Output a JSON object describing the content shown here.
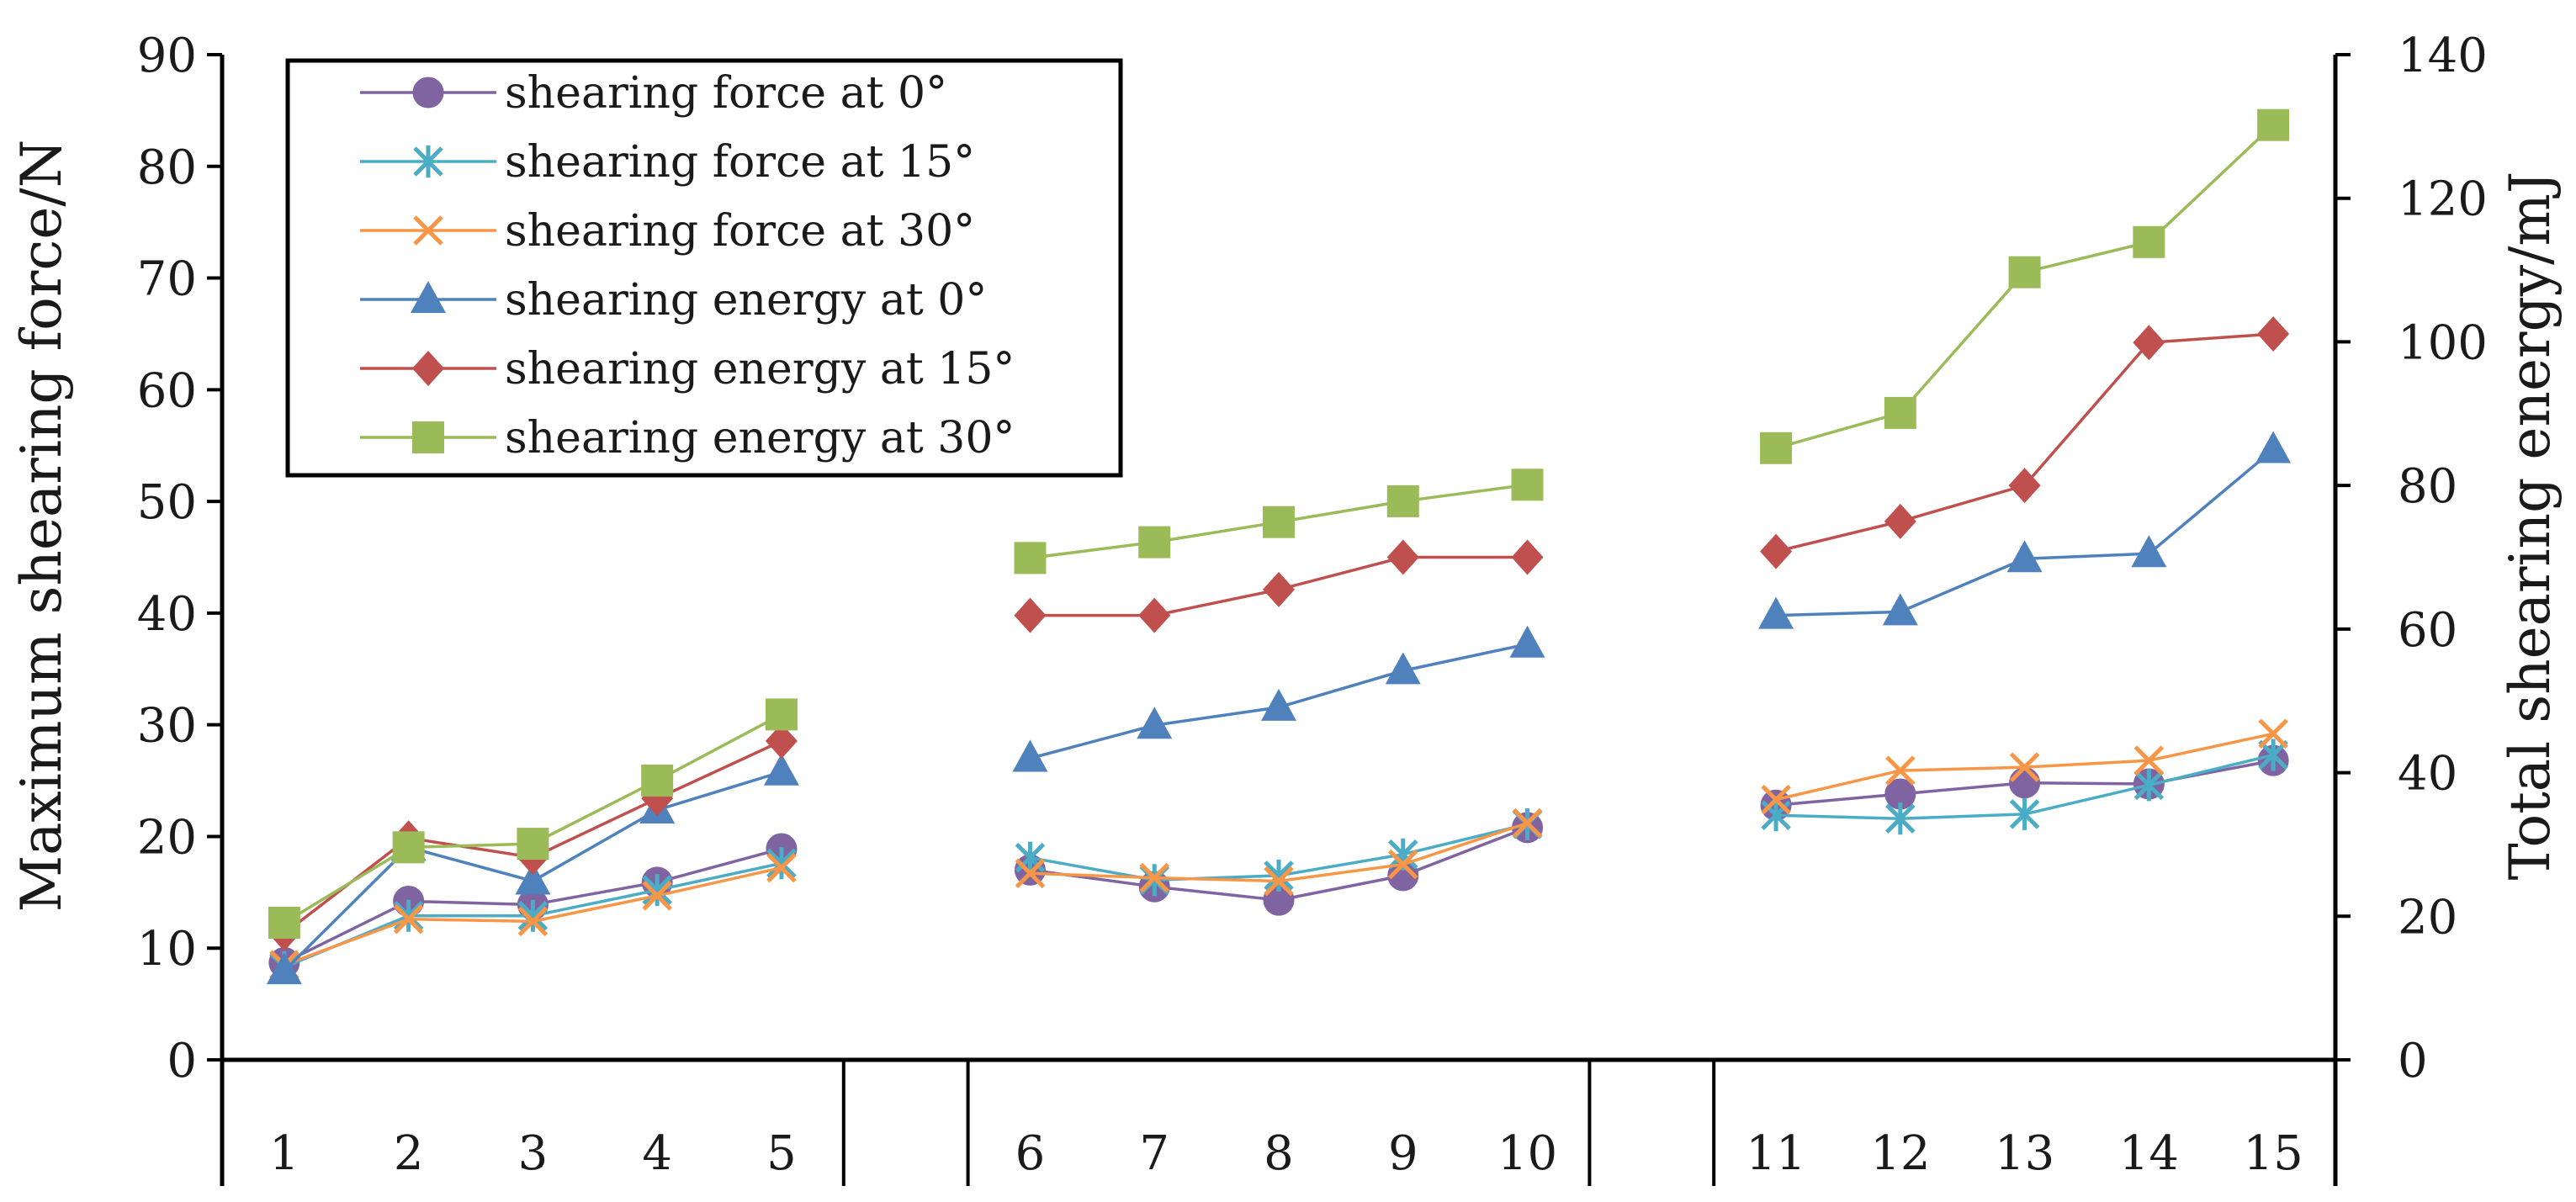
{
  "chart_data": {
    "type": "line",
    "title": "",
    "xlabel": "",
    "ylabel": "Maximum shearing force/N",
    "y2label": "Total shearing energy/mJ",
    "ylim": [
      0,
      90
    ],
    "y2lim": [
      0,
      140
    ],
    "yticks": [
      "0",
      "10",
      "20",
      "30",
      "40",
      "50",
      "60",
      "70",
      "80",
      "90"
    ],
    "y2ticks": [
      "0",
      "20",
      "40",
      "60",
      "80",
      "100",
      "120",
      "140"
    ],
    "categories": [
      "1",
      "2",
      "3",
      "4",
      "5",
      "",
      "6",
      "7",
      "8",
      "9",
      "10",
      "",
      "11",
      "12",
      "13",
      "14",
      "15"
    ],
    "legend_position": "top-left",
    "series": [
      {
        "name": "shearing force at 0°",
        "axis": "left",
        "color": "#8064A2",
        "marker": "circle",
        "groups": [
          [
            8.7,
            14.2,
            13.9,
            15.9,
            18.9
          ],
          [
            17.0,
            15.5,
            14.3,
            16.5,
            20.8
          ],
          [
            22.8,
            23.8,
            24.8,
            24.7,
            26.8
          ]
        ]
      },
      {
        "name": "shearing force at 15°",
        "axis": "left",
        "color": "#4BACC6",
        "marker": "asterisk",
        "groups": [
          [
            8.3,
            12.9,
            12.9,
            15.2,
            17.6
          ],
          [
            18.1,
            16.1,
            16.5,
            18.4,
            21.1
          ],
          [
            21.9,
            21.6,
            22.0,
            24.6,
            27.3
          ]
        ]
      },
      {
        "name": "shearing force at 30°",
        "axis": "left",
        "color": "#F79646",
        "marker": "x",
        "groups": [
          [
            8.5,
            12.6,
            12.4,
            14.7,
            17.2
          ],
          [
            16.7,
            16.3,
            16.0,
            17.5,
            21.2
          ],
          [
            23.3,
            25.9,
            26.2,
            26.8,
            29.2
          ]
        ]
      },
      {
        "name": "shearing energy at 0°",
        "axis": "right",
        "color": "#4F81BD",
        "marker": "triangle",
        "groups": [
          [
            12.4,
            29.6,
            24.9,
            34.8,
            40.1
          ],
          [
            42.0,
            46.6,
            49.1,
            54.2,
            57.9
          ],
          [
            61.9,
            62.4,
            69.8,
            70.5,
            85.0
          ]
        ]
      },
      {
        "name": "shearing energy at 15°",
        "axis": "right",
        "color": "#C0504D",
        "marker": "diamond",
        "groups": [
          [
            17.6,
            30.9,
            28.2,
            36.4,
            44.4
          ],
          [
            61.9,
            61.9,
            65.5,
            70.0,
            70.0
          ],
          [
            70.8,
            75.0,
            80.0,
            99.9,
            101.1
          ]
        ]
      },
      {
        "name": "shearing energy at 30°",
        "axis": "right",
        "color": "#9BBB59",
        "marker": "square",
        "groups": [
          [
            19.1,
            29.6,
            30.1,
            38.9,
            48.1
          ],
          [
            69.9,
            72.1,
            74.9,
            77.8,
            80.1
          ],
          [
            85.2,
            90.1,
            109.7,
            113.9,
            130.2
          ]
        ]
      }
    ]
  }
}
